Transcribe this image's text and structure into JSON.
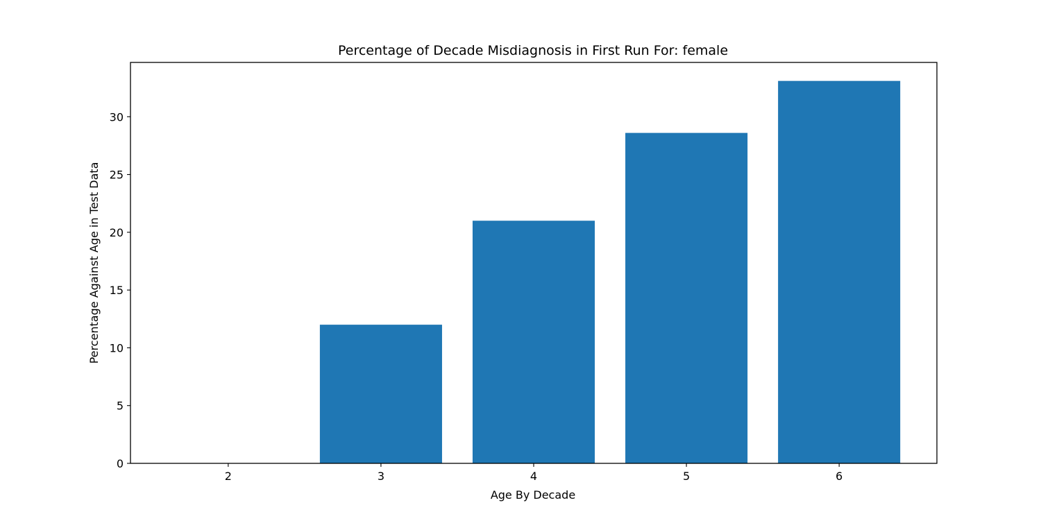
{
  "chart_data": {
    "type": "bar",
    "title": "Percentage of Decade Misdiagnosis in First Run For: female",
    "xlabel": "Age By Decade",
    "ylabel": "Percentage Against Age in Test Data",
    "categories": [
      "2",
      "3",
      "4",
      "5",
      "6"
    ],
    "values": [
      0,
      12.0,
      21.0,
      28.6,
      33.1
    ],
    "ylim": [
      0,
      34.7
    ],
    "xlim": [
      1.36,
      6.64
    ],
    "yticks": [
      0,
      5,
      10,
      15,
      20,
      25,
      30
    ],
    "ytick_labels": [
      "0",
      "5",
      "10",
      "15",
      "20",
      "25",
      "30"
    ],
    "bar_width": 0.8,
    "bar_color": "#1f77b4",
    "grid": false,
    "legend": "none"
  }
}
